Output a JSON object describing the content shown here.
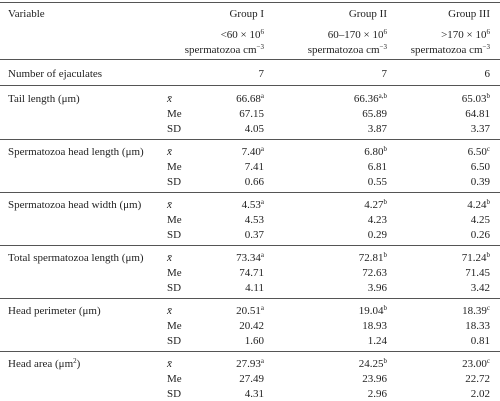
{
  "table": {
    "header": [
      "Variable",
      "Group I",
      "Group II",
      "Group III"
    ],
    "subheader": [
      {
        "conc": "<60 × 10",
        "conc_exp": "6",
        "unit": "spermatozoa cm",
        "unit_exp": "−3"
      },
      {
        "conc": "60–170 × 10",
        "conc_exp": "6",
        "unit": "spermatozoa cm",
        "unit_exp": "−3"
      },
      {
        "conc": ">170 × 10",
        "conc_exp": "6",
        "unit": "spermatozoa cm",
        "unit_exp": "−3"
      }
    ],
    "ejaculates": {
      "label": "Number of ejaculates",
      "values": [
        7,
        7,
        6
      ]
    },
    "variables": [
      {
        "name": "Tail length (μm)",
        "rows": [
          {
            "stat": "x̄",
            "values": [
              "66.68",
              "66.36",
              "65.03"
            ],
            "sups": [
              "a",
              "a,b",
              "b"
            ]
          },
          {
            "stat": "Me",
            "values": [
              "67.15",
              "65.89",
              "64.81"
            ]
          },
          {
            "stat": "SD",
            "values": [
              "4.05",
              "3.87",
              "3.37"
            ]
          }
        ]
      },
      {
        "name": "Spermatozoa head length (μm)",
        "rows": [
          {
            "stat": "x̄",
            "values": [
              "7.40",
              "6.80",
              "6.50"
            ],
            "sups": [
              "a",
              "b",
              "c"
            ]
          },
          {
            "stat": "Me",
            "values": [
              "7.41",
              "6.81",
              "6.50"
            ]
          },
          {
            "stat": "SD",
            "values": [
              "0.66",
              "0.55",
              "0.39"
            ]
          }
        ]
      },
      {
        "name": "Spermatozoa head width (μm)",
        "rows": [
          {
            "stat": "x̄",
            "values": [
              "4.53",
              "4.27",
              "4.24"
            ],
            "sups": [
              "a",
              "b",
              "b"
            ]
          },
          {
            "stat": "Me",
            "values": [
              "4.53",
              "4.23",
              "4.25"
            ]
          },
          {
            "stat": "SD",
            "values": [
              "0.37",
              "0.29",
              "0.26"
            ]
          }
        ]
      },
      {
        "name": "Total spermatozoa length (μm)",
        "rows": [
          {
            "stat": "x̄",
            "values": [
              "73.34",
              "72.81",
              "71.24"
            ],
            "sups": [
              "a",
              "b",
              "b"
            ]
          },
          {
            "stat": "Me",
            "values": [
              "74.71",
              "72.63",
              "71.45"
            ]
          },
          {
            "stat": "SD",
            "values": [
              "4.11",
              "3.96",
              "3.42"
            ]
          }
        ]
      },
      {
        "name": "Head perimeter (μm)",
        "rows": [
          {
            "stat": "x̄",
            "values": [
              "20.51",
              "19.04",
              "18.39"
            ],
            "sups": [
              "a",
              "b",
              "c"
            ]
          },
          {
            "stat": "Me",
            "values": [
              "20.42",
              "18.93",
              "18.33"
            ]
          },
          {
            "stat": "SD",
            "values": [
              "1.60",
              "1.24",
              "0.81"
            ]
          }
        ]
      },
      {
        "name": "Head area (μm",
        "name_sup": "2",
        "name_end": ")",
        "rows": [
          {
            "stat": "x̄",
            "values": [
              "27.93",
              "24.25",
              "23.00"
            ],
            "sups": [
              "a",
              "b",
              "c"
            ]
          },
          {
            "stat": "Me",
            "values": [
              "27.49",
              "23.96",
              "22.72"
            ]
          },
          {
            "stat": "SD",
            "values": [
              "4.31",
              "2.96",
              "2.02"
            ]
          }
        ]
      }
    ]
  }
}
